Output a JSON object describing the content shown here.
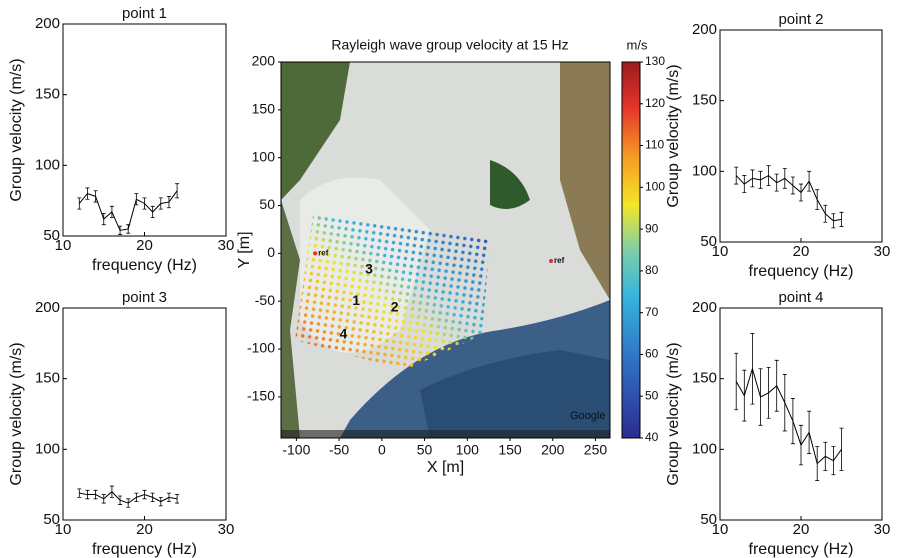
{
  "chart_data": [
    {
      "type": "line",
      "title": "point 1",
      "xlabel": "frequency (Hz)",
      "ylabel": "Group velocity (m/s)",
      "x": [
        12,
        13,
        14,
        15,
        16,
        17,
        18,
        19,
        20,
        21,
        22,
        23,
        24
      ],
      "values": [
        73,
        80,
        78,
        62,
        67,
        54,
        55,
        76,
        73,
        67,
        73,
        74,
        82
      ],
      "errors": [
        4,
        4,
        4,
        4,
        4,
        3,
        3,
        4,
        4,
        4,
        4,
        4,
        5
      ],
      "xlim": [
        10,
        30
      ],
      "ylim": [
        50,
        200
      ],
      "xticks": [
        10,
        20,
        30
      ],
      "yticks": [
        50,
        100,
        150,
        200
      ],
      "color": "#000000"
    },
    {
      "type": "line",
      "title": "point 2",
      "xlabel": "frequency (Hz)",
      "ylabel": "Group velocity (m/s)",
      "x": [
        12,
        13,
        14,
        15,
        16,
        17,
        18,
        19,
        20,
        21,
        22,
        23,
        24,
        25
      ],
      "values": [
        97,
        91,
        95,
        94,
        97,
        92,
        95,
        90,
        85,
        93,
        80,
        70,
        65,
        66
      ],
      "errors": [
        6,
        6,
        6,
        6,
        7,
        6,
        7,
        6,
        6,
        7,
        7,
        6,
        5,
        5
      ],
      "xlim": [
        10,
        30
      ],
      "ylim": [
        50,
        200
      ],
      "xticks": [
        10,
        20,
        30
      ],
      "yticks": [
        50,
        100,
        150,
        200
      ],
      "color": "#000000"
    },
    {
      "type": "line",
      "title": "point 3",
      "xlabel": "frequency (Hz)",
      "ylabel": "Group velocity (m/s)",
      "x": [
        12,
        13,
        14,
        15,
        16,
        17,
        18,
        19,
        20,
        21,
        22,
        23,
        24
      ],
      "values": [
        69,
        68,
        68,
        65,
        70,
        64,
        62,
        66,
        68,
        66,
        63,
        66,
        65
      ],
      "errors": [
        3,
        3,
        3,
        3,
        4,
        3,
        3,
        3,
        3,
        3,
        3,
        3,
        3
      ],
      "xlim": [
        10,
        30
      ],
      "ylim": [
        50,
        200
      ],
      "xticks": [
        10,
        20,
        30
      ],
      "yticks": [
        50,
        100,
        150,
        200
      ],
      "color": "#000000"
    },
    {
      "type": "line",
      "title": "point 4",
      "xlabel": "frequency (Hz)",
      "ylabel": "Group velocity (m/s)",
      "x": [
        12,
        13,
        14,
        15,
        16,
        17,
        18,
        19,
        20,
        21,
        22,
        23,
        24,
        25
      ],
      "values": [
        148,
        138,
        157,
        137,
        140,
        145,
        133,
        120,
        103,
        112,
        90,
        95,
        92,
        100
      ],
      "errors": [
        20,
        18,
        25,
        20,
        18,
        18,
        20,
        16,
        14,
        15,
        12,
        10,
        10,
        15
      ],
      "xlim": [
        10,
        30
      ],
      "ylim": [
        50,
        200
      ],
      "xticks": [
        10,
        20,
        30
      ],
      "yticks": [
        50,
        100,
        150,
        200
      ],
      "color": "#000000"
    },
    {
      "type": "map",
      "title": "Rayleigh wave group velocity at 15 Hz",
      "xlabel": "X [m]",
      "ylabel": "Y [m]",
      "xlim": [
        -118,
        267
      ],
      "ylim": [
        -193,
        200
      ],
      "xticks": [
        -100,
        -50,
        0,
        50,
        100,
        150,
        200,
        250
      ],
      "yticks": [
        -150,
        -100,
        -50,
        0,
        50,
        100,
        150,
        200
      ],
      "colorbar": {
        "label": "m/s",
        "lim": [
          40,
          130
        ],
        "ticks": [
          40,
          50,
          60,
          70,
          80,
          90,
          100,
          110,
          120,
          130
        ]
      },
      "annotations": [
        {
          "text": "1",
          "x": -30,
          "y": -50
        },
        {
          "text": "2",
          "x": 15,
          "y": -57
        },
        {
          "text": "3",
          "x": -15,
          "y": -17
        },
        {
          "text": "4",
          "x": -45,
          "y": -85
        },
        {
          "text": "ref",
          "x": -78,
          "y": 0
        },
        {
          "text": "ref",
          "x": 198,
          "y": -8
        }
      ],
      "attribution": "Google"
    }
  ]
}
